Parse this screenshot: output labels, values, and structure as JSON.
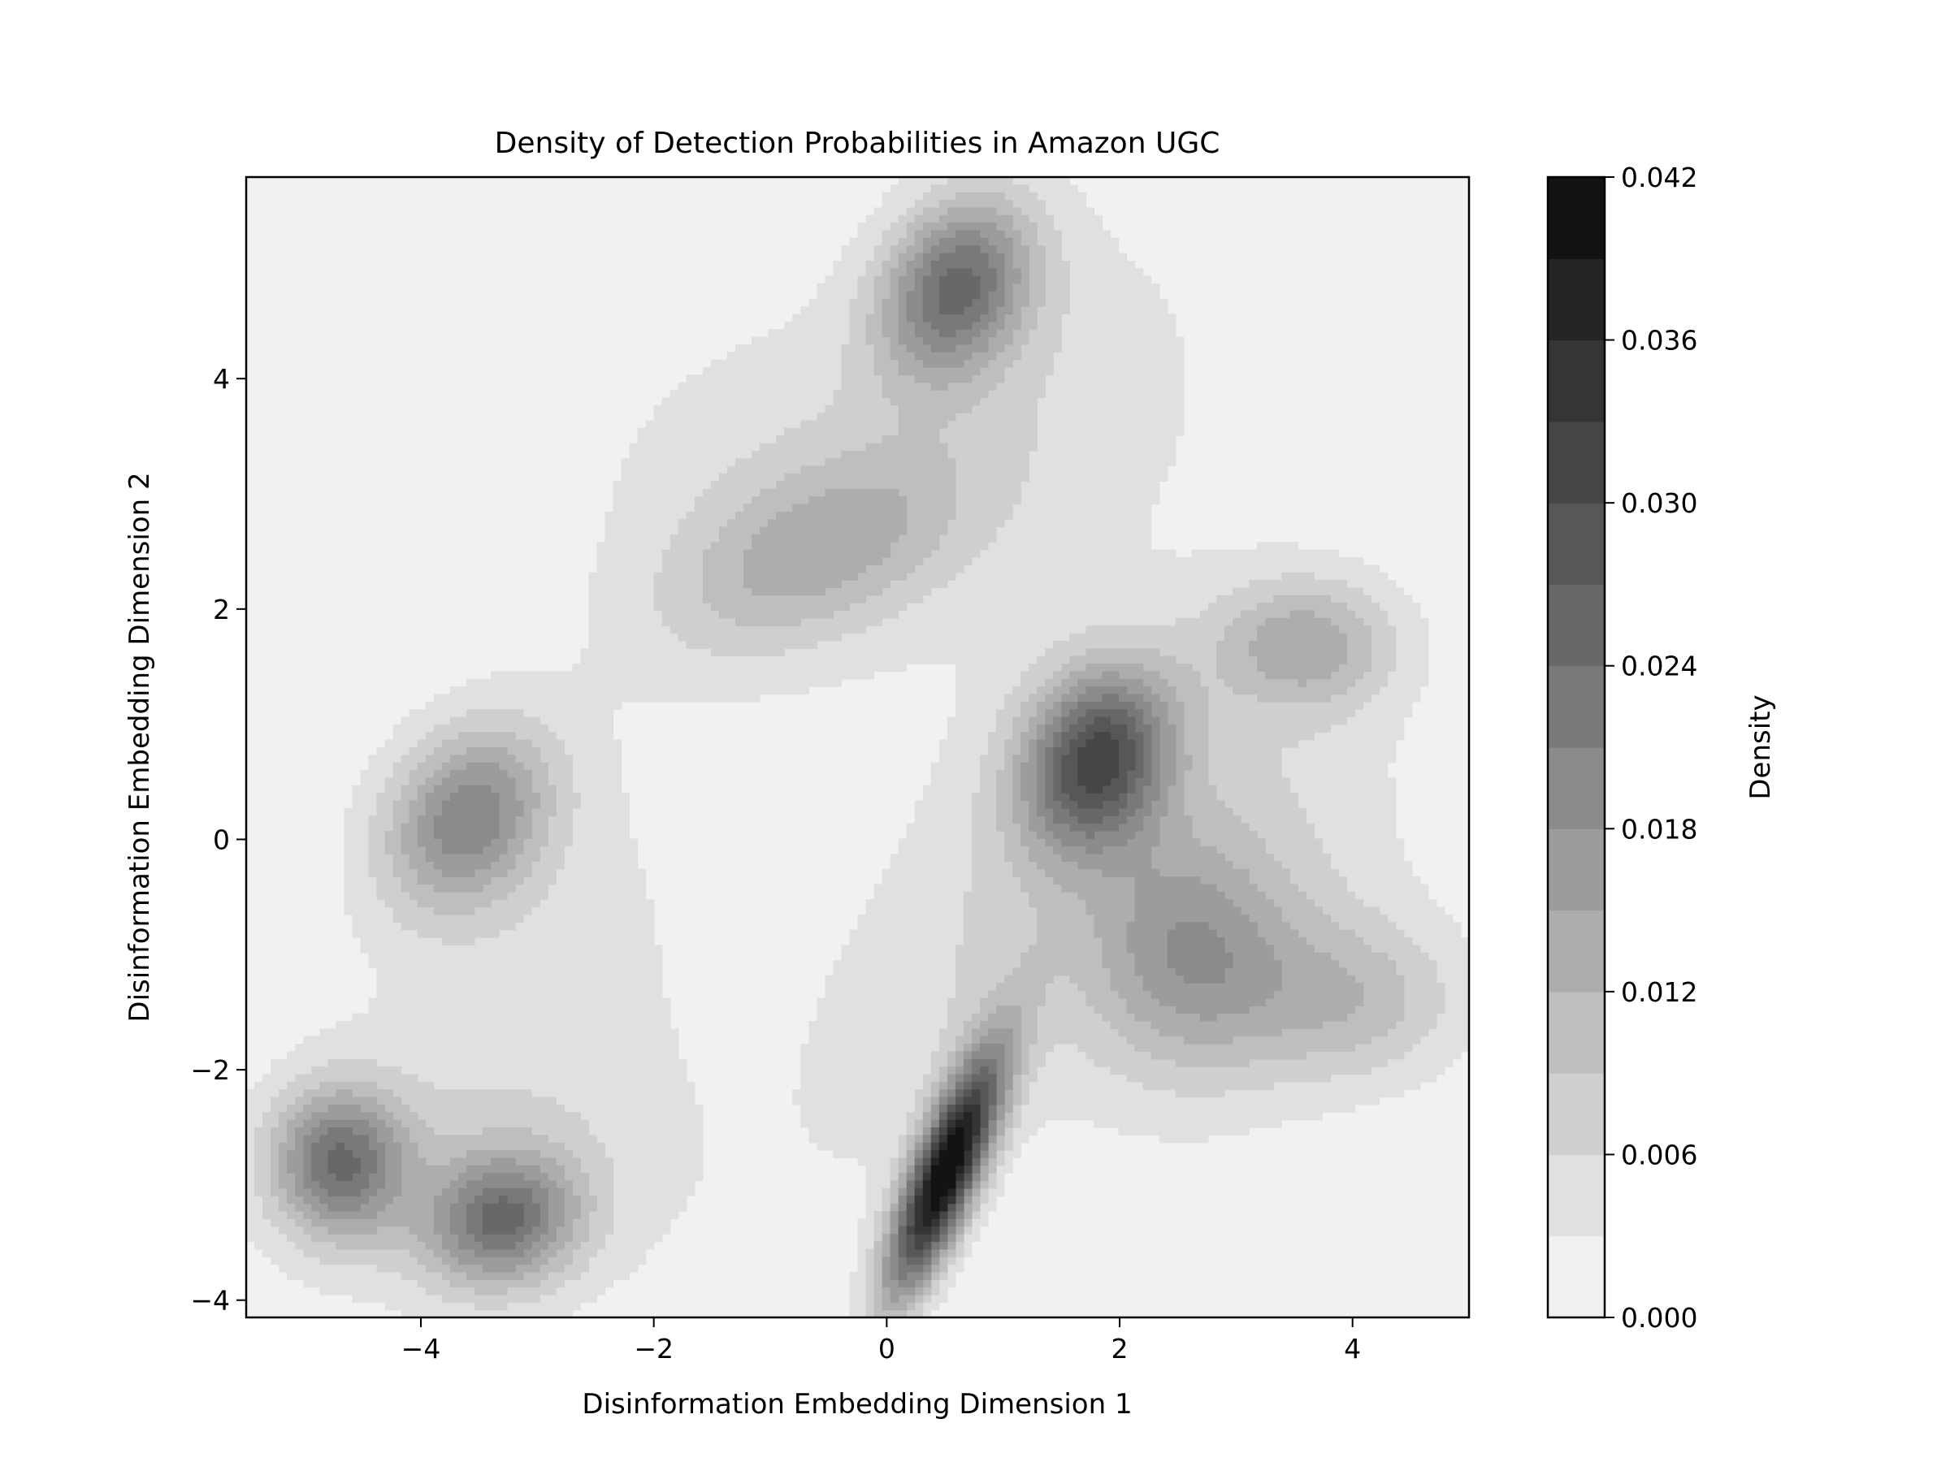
{
  "chart_data": {
    "type": "contour",
    "title": "Density of Detection Probabilities in Amazon UGC",
    "xlabel": "Disinformation Embedding Dimension 1",
    "ylabel": "Disinformation Embedding Dimension 2",
    "xlim": [
      -5.5,
      5.0
    ],
    "ylim": [
      -4.15,
      5.75
    ],
    "xticks": [
      -4,
      -2,
      0,
      2,
      4
    ],
    "yticks": [
      -4,
      -2,
      0,
      2,
      4
    ],
    "xtick_labels": [
      "−4",
      "−2",
      "0",
      "2",
      "4"
    ],
    "ytick_labels": [
      "−4",
      "−2",
      "0",
      "2",
      "4"
    ],
    "grid": false,
    "colormap": "Greys",
    "colorbar": {
      "label": "Density",
      "min": 0.0,
      "max": 0.042,
      "levels": 14,
      "ticks": [
        0.0,
        0.006,
        0.012,
        0.018,
        0.024,
        0.03,
        0.036,
        0.042
      ],
      "tick_labels": [
        "0.000",
        "0.006",
        "0.012",
        "0.018",
        "0.024",
        "0.030",
        "0.036",
        "0.042"
      ]
    },
    "density_peaks": [
      {
        "x": 0.5,
        "y": -2.9,
        "density": 0.041
      },
      {
        "x": 1.8,
        "y": 0.7,
        "density": 0.027
      },
      {
        "x": 0.6,
        "y": 4.8,
        "density": 0.022
      },
      {
        "x": -3.6,
        "y": 0.2,
        "density": 0.018
      },
      {
        "x": -4.7,
        "y": -2.8,
        "density": 0.021
      },
      {
        "x": -3.3,
        "y": -3.3,
        "density": 0.02
      },
      {
        "x": 3.6,
        "y": 1.7,
        "density": 0.012
      },
      {
        "x": 2.6,
        "y": -1.0,
        "density": 0.012
      },
      {
        "x": -0.6,
        "y": 2.5,
        "density": 0.01
      },
      {
        "x": 4.0,
        "y": -1.4,
        "density": 0.009
      }
    ]
  }
}
